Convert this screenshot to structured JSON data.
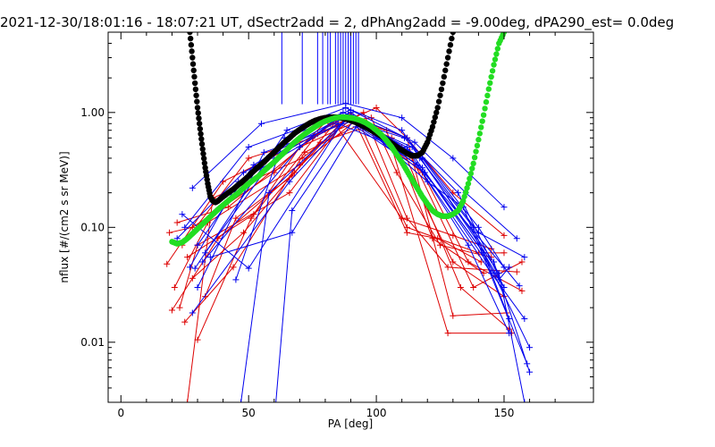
{
  "chart_data": {
    "type": "scatter",
    "title": "2021-12-30/18:01:16 - 18:07:21 UT, dSectr2add = 2, dPhAng2add = -9.00deg, dPA290_est=   0.0deg",
    "xlabel": "PA [deg]",
    "ylabel": "nflux [#/(cm2 s sr MeV)]",
    "xlim": [
      -5,
      185
    ],
    "ylim": [
      0.003,
      5
    ],
    "yscale": "log",
    "grid": false,
    "x_ticks": [
      0,
      50,
      100,
      150
    ],
    "y_ticks": [
      {
        "value": 1.0,
        "label": "1.00"
      },
      {
        "value": 0.1,
        "label": "0.10"
      },
      {
        "value": 0.01,
        "label": "0.01"
      }
    ],
    "vertical_markers": {
      "color": "#0000ff",
      "x": [
        63,
        71,
        77,
        79,
        81,
        82,
        84,
        85,
        86,
        87,
        88,
        89,
        90,
        91,
        92,
        93
      ],
      "y_low": 1.18
    },
    "series": [
      {
        "color": "#000000",
        "marker": "dot",
        "x": [
          27,
          28,
          29,
          30,
          31,
          32,
          33,
          34,
          35,
          36,
          37,
          38,
          40,
          42,
          44,
          46,
          48,
          50,
          52,
          54,
          56,
          58,
          60,
          62,
          64,
          66,
          68,
          70,
          72,
          74,
          76,
          78,
          80,
          82,
          84,
          86,
          88,
          90,
          92,
          94,
          96,
          98,
          100,
          102,
          104,
          106,
          108,
          110,
          112,
          114,
          116,
          118,
          120,
          122,
          124,
          126,
          128,
          130
        ],
        "y": [
          5.0,
          3.0,
          1.8,
          1.1,
          0.72,
          0.48,
          0.33,
          0.24,
          0.185,
          0.17,
          0.165,
          0.17,
          0.185,
          0.2,
          0.215,
          0.235,
          0.255,
          0.28,
          0.31,
          0.34,
          0.37,
          0.41,
          0.45,
          0.5,
          0.55,
          0.6,
          0.66,
          0.71,
          0.76,
          0.81,
          0.85,
          0.88,
          0.9,
          0.91,
          0.91,
          0.9,
          0.88,
          0.85,
          0.82,
          0.78,
          0.74,
          0.7,
          0.66,
          0.62,
          0.58,
          0.54,
          0.5,
          0.47,
          0.44,
          0.42,
          0.42,
          0.45,
          0.55,
          0.75,
          1.1,
          1.8,
          3.0,
          5.0
        ]
      },
      {
        "color": "#22dd22",
        "marker": "dot",
        "x": [
          20,
          22,
          24,
          26,
          28,
          30,
          32,
          34,
          36,
          38,
          40,
          42,
          44,
          46,
          48,
          50,
          52,
          54,
          56,
          58,
          60,
          62,
          64,
          66,
          68,
          70,
          72,
          74,
          76,
          78,
          80,
          82,
          84,
          86,
          88,
          90,
          92,
          94,
          96,
          98,
          100,
          102,
          104,
          106,
          108,
          110,
          112,
          114,
          116,
          118,
          120,
          122,
          124,
          126,
          128,
          130,
          132,
          134,
          136,
          138,
          140,
          142,
          144,
          146,
          148,
          150
        ],
        "y": [
          0.075,
          0.072,
          0.074,
          0.08,
          0.088,
          0.097,
          0.107,
          0.118,
          0.13,
          0.143,
          0.156,
          0.17,
          0.185,
          0.2,
          0.22,
          0.24,
          0.26,
          0.28,
          0.31,
          0.34,
          0.37,
          0.41,
          0.45,
          0.5,
          0.55,
          0.6,
          0.65,
          0.7,
          0.75,
          0.8,
          0.84,
          0.87,
          0.9,
          0.91,
          0.91,
          0.9,
          0.88,
          0.85,
          0.81,
          0.76,
          0.7,
          0.64,
          0.57,
          0.5,
          0.43,
          0.37,
          0.31,
          0.26,
          0.22,
          0.185,
          0.16,
          0.14,
          0.13,
          0.125,
          0.125,
          0.13,
          0.14,
          0.17,
          0.24,
          0.36,
          0.58,
          0.95,
          1.6,
          2.6,
          4.0,
          5.0
        ]
      }
    ],
    "blue_lines": [
      {
        "x": [
          28,
          55,
          88,
          110,
          130,
          150
        ],
        "y": [
          0.22,
          0.8,
          1.2,
          0.9,
          0.4,
          0.15
        ]
      },
      {
        "x": [
          25,
          50,
          90,
          115,
          135,
          155
        ],
        "y": [
          0.1,
          0.5,
          1.05,
          0.55,
          0.2,
          0.08
        ]
      },
      {
        "x": [
          30,
          52,
          87,
          112,
          140,
          150
        ],
        "y": [
          0.07,
          0.35,
          1.0,
          0.6,
          0.1,
          0.045
        ]
      },
      {
        "x": [
          33,
          60,
          89,
          118,
          140,
          158
        ],
        "y": [
          0.06,
          0.4,
          0.95,
          0.4,
          0.09,
          0.055
        ]
      },
      {
        "x": [
          22,
          48,
          86,
          111,
          132,
          150
        ],
        "y": [
          0.08,
          0.3,
          0.9,
          0.6,
          0.2,
          0.03
        ]
      },
      {
        "x": [
          30,
          56,
          91,
          116,
          145,
          158
        ],
        "y": [
          0.03,
          0.45,
          0.85,
          0.35,
          0.04,
          0.016
        ]
      },
      {
        "x": [
          27,
          46,
          85,
          113,
          136,
          152
        ],
        "y": [
          0.045,
          0.25,
          0.8,
          0.45,
          0.07,
          0.012
        ]
      },
      {
        "x": [
          35,
          67,
          92,
          119,
          142,
          160
        ],
        "y": [
          0.055,
          0.09,
          0.75,
          0.3,
          0.06,
          0.009
        ]
      },
      {
        "x": [
          24,
          50,
          88,
          114,
          146,
          160
        ],
        "y": [
          0.13,
          0.044,
          0.9,
          0.5,
          0.05,
          0.0055
        ]
      },
      {
        "x": [
          45,
          64,
          90,
          117,
          138,
          152
        ],
        "y": [
          0.035,
          0.6,
          1.0,
          0.4,
          0.1,
          0.016
        ]
      },
      {
        "x": [
          29,
          65,
          88,
          110,
          148,
          158
        ],
        "y": [
          0.044,
          0.7,
          1.1,
          0.7,
          0.04,
          0.003
        ]
      },
      {
        "x": [
          47,
          58,
          90,
          120,
          134,
          159
        ],
        "y": [
          0.003,
          0.2,
          0.95,
          0.25,
          0.15,
          0.0065
        ]
      },
      {
        "x": [
          28,
          66,
          89,
          112,
          142,
          150
        ],
        "y": [
          0.018,
          0.25,
          0.9,
          0.5,
          0.06,
          0.03
        ]
      },
      {
        "x": [
          60,
          67,
          91,
          116,
          150,
          156
        ],
        "y": [
          0.002,
          0.14,
          0.85,
          0.35,
          0.045,
          0.031
        ]
      },
      {
        "x": [
          32,
          70,
          86,
          118,
          148,
          152
        ],
        "y": [
          0.05,
          0.5,
          0.95,
          0.33,
          0.035,
          0.045
        ]
      }
    ],
    "red_lines": [
      {
        "x": [
          18,
          40,
          80,
          100,
          112,
          130,
          150
        ],
        "y": [
          0.048,
          0.25,
          0.7,
          1.1,
          0.6,
          0.2,
          0.085
        ]
      },
      {
        "x": [
          22,
          42,
          82,
          98,
          108,
          125,
          145
        ],
        "y": [
          0.11,
          0.15,
          0.8,
          0.9,
          0.3,
          0.07,
          0.055
        ]
      },
      {
        "x": [
          24,
          50,
          75,
          95,
          112,
          128,
          155
        ],
        "y": [
          0.07,
          0.4,
          0.6,
          1.0,
          0.12,
          0.045,
          0.041
        ]
      },
      {
        "x": [
          21,
          34,
          70,
          92,
          106,
          130,
          150
        ],
        "y": [
          0.03,
          0.11,
          0.35,
          0.85,
          0.6,
          0.05,
          0.025
        ]
      },
      {
        "x": [
          20,
          38,
          68,
          89,
          110,
          133,
          152
        ],
        "y": [
          0.019,
          0.08,
          0.3,
          0.95,
          0.5,
          0.03,
          0.013
        ]
      },
      {
        "x": [
          25,
          44,
          72,
          94,
          114,
          138,
          157
        ],
        "y": [
          0.015,
          0.045,
          0.45,
          0.8,
          0.4,
          0.03,
          0.05
        ]
      },
      {
        "x": [
          26,
          52,
          70,
          93,
          112,
          140,
          150
        ],
        "y": [
          0.055,
          0.13,
          0.5,
          0.85,
          0.1,
          0.06,
          0.06
        ]
      },
      {
        "x": [
          28,
          48,
          78,
          96,
          118,
          136,
          157
        ],
        "y": [
          0.036,
          0.09,
          0.55,
          0.75,
          0.3,
          0.05,
          0.028
        ]
      },
      {
        "x": [
          23,
          30,
          66,
          90,
          112,
          124,
          141
        ],
        "y": [
          0.02,
          0.07,
          0.2,
          1.0,
          0.09,
          0.08,
          0.05
        ]
      },
      {
        "x": [
          30,
          51,
          77,
          87,
          108,
          122,
          142
        ],
        "y": [
          0.0105,
          0.12,
          0.65,
          0.95,
          0.5,
          0.08,
          0.04
        ]
      },
      {
        "x": [
          19,
          28,
          60,
          82,
          110,
          130,
          145
        ],
        "y": [
          0.09,
          0.1,
          0.3,
          0.9,
          0.12,
          0.085,
          0.065
        ]
      },
      {
        "x": [
          33,
          45,
          67,
          85,
          104,
          128,
          153
        ],
        "y": [
          0.025,
          0.12,
          0.28,
          0.88,
          0.7,
          0.012,
          0.012
        ]
      },
      {
        "x": [
          26,
          36,
          71,
          91,
          112,
          130,
          151
        ],
        "y": [
          0.003,
          0.18,
          0.4,
          0.9,
          0.6,
          0.017,
          0.018
        ]
      }
    ]
  }
}
